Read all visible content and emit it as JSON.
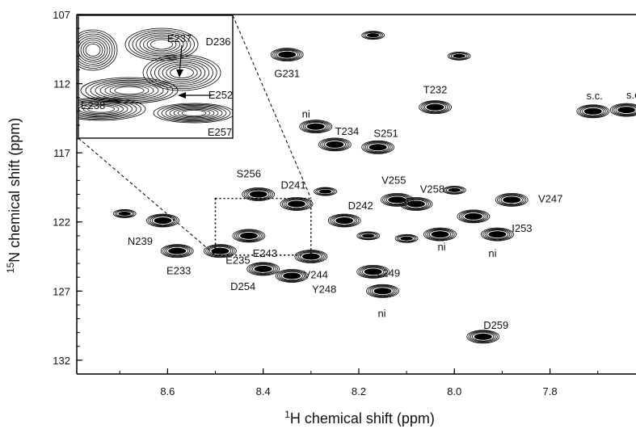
{
  "chart_data": {
    "type": "scatter",
    "title": "",
    "xlabel_sup": "1",
    "xlabel": "H chemical shift (ppm)",
    "ylabel_sup": "15",
    "ylabel": "N chemical shift (ppm)",
    "xlim": [
      8.79,
      7.62
    ],
    "ylim": [
      107,
      133
    ],
    "x_reversed": true,
    "y_reversed": true,
    "xticks": [
      8.6,
      8.4,
      8.2,
      8.0,
      7.8
    ],
    "xtick_labels": [
      "8.6",
      "8.4",
      "8.2",
      "8.0",
      "7.8"
    ],
    "yticks": [
      107,
      112,
      117,
      122,
      127,
      132
    ],
    "ytick_labels": [
      "107",
      "112",
      "117",
      "122",
      "127",
      "132"
    ],
    "grid": false,
    "peaks": [
      {
        "label": "G231",
        "x": 8.35,
        "y": 109.9
      },
      {
        "label": "T232",
        "x": 8.04,
        "y": 113.7
      },
      {
        "label": "T234",
        "x": 8.25,
        "y": 116.4
      },
      {
        "label": "S251",
        "x": 8.16,
        "y": 116.6
      },
      {
        "label": "ni",
        "x": 8.29,
        "y": 115.1
      },
      {
        "label": "D241",
        "x": 8.33,
        "y": 120.7
      },
      {
        "label": "S256",
        "x": 8.41,
        "y": 120.0
      },
      {
        "label": "V255",
        "x": 8.12,
        "y": 120.4
      },
      {
        "label": "V258",
        "x": 8.08,
        "y": 120.7
      },
      {
        "label": "D242",
        "x": 8.23,
        "y": 121.9
      },
      {
        "label": "V247",
        "x": 7.88,
        "y": 120.4
      },
      {
        "label": "I253",
        "x": 7.96,
        "y": 121.6
      },
      {
        "label": "N239",
        "x": 8.61,
        "y": 121.9
      },
      {
        "label": "E243",
        "x": 8.43,
        "y": 123.0
      },
      {
        "label": "E233",
        "x": 8.58,
        "y": 124.1
      },
      {
        "label": "E235",
        "x": 8.49,
        "y": 124.1
      },
      {
        "label": "V244",
        "x": 8.3,
        "y": 124.5
      },
      {
        "label": "D254",
        "x": 8.4,
        "y": 125.4
      },
      {
        "label": "Y248",
        "x": 8.34,
        "y": 125.9
      },
      {
        "label": "L249",
        "x": 8.17,
        "y": 125.6
      },
      {
        "label": "ni",
        "x": 8.15,
        "y": 127.0
      },
      {
        "label": "ni",
        "x": 8.03,
        "y": 122.9
      },
      {
        "label": "ni",
        "x": 7.91,
        "y": 122.9
      },
      {
        "label": "D259",
        "x": 7.94,
        "y": 130.3
      },
      {
        "label": "s.c.",
        "x": 7.71,
        "y": 114.0
      },
      {
        "label": "s.c.",
        "x": 7.64,
        "y": 113.9
      }
    ],
    "unlabeled_peaks": [
      {
        "x": 8.17,
        "y": 108.5
      },
      {
        "x": 7.99,
        "y": 110.0
      },
      {
        "x": 8.69,
        "y": 121.4
      },
      {
        "x": 8.27,
        "y": 119.8
      },
      {
        "x": 8.18,
        "y": 123.0
      },
      {
        "x": 8.0,
        "y": 119.7
      },
      {
        "x": 8.1,
        "y": 123.2
      }
    ],
    "inset": {
      "labels": [
        "E237",
        "D236",
        "E252",
        "E238",
        "E257"
      ],
      "zoom_box": {
        "x": [
          8.5,
          8.3
        ],
        "y": [
          120.3,
          124.4
        ]
      }
    }
  }
}
